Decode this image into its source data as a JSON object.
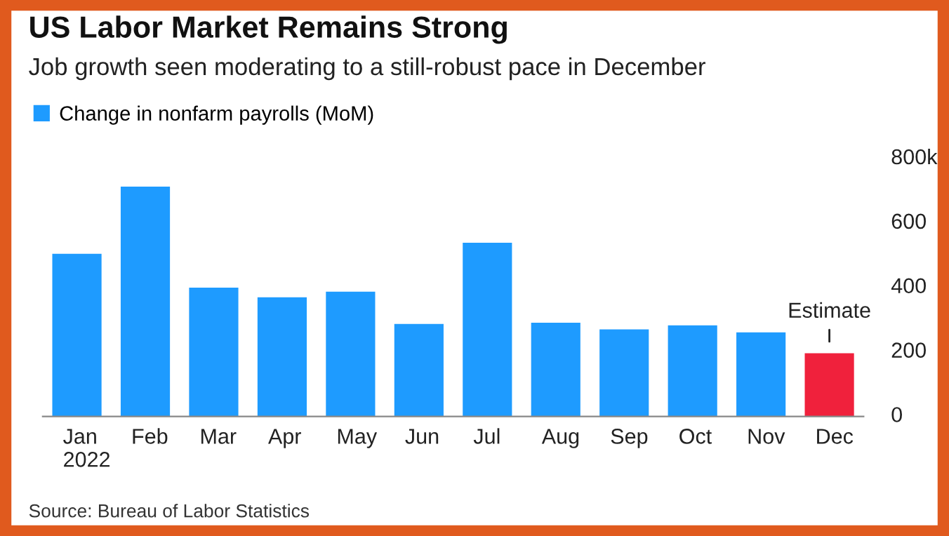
{
  "chart_data": {
    "type": "bar",
    "title": "US Labor Market Remains Strong",
    "subtitle": "Job growth seen moderating to a still-robust pace in December",
    "categories": [
      "Jan\n2022",
      "Feb",
      "Mar",
      "Apr",
      "May",
      "Jun",
      "Jul",
      "Aug",
      "Sep",
      "Oct",
      "Nov",
      "Dec"
    ],
    "series": [
      {
        "name": "Change in nonfarm payrolls (MoM)",
        "color": "#1e9bff",
        "colors": [
          "#1e9bff",
          "#1e9bff",
          "#1e9bff",
          "#1e9bff",
          "#1e9bff",
          "#1e9bff",
          "#1e9bff",
          "#1e9bff",
          "#1e9bff",
          "#1e9bff",
          "#1e9bff",
          "#f0213c"
        ],
        "values": [
          505,
          713,
          400,
          370,
          387,
          287,
          539,
          291,
          270,
          283,
          261,
          196
        ]
      }
    ],
    "ylim": [
      0,
      800
    ],
    "yticks": [
      0,
      200,
      400,
      600,
      {
        "value": 800,
        "label": "800k"
      }
    ],
    "annotations": [
      {
        "text": "Estimate",
        "x": "Dec",
        "y": 196
      },
      "Source: Bureau of Labor Statistics"
    ],
    "legend": "top left",
    "grid": false
  }
}
